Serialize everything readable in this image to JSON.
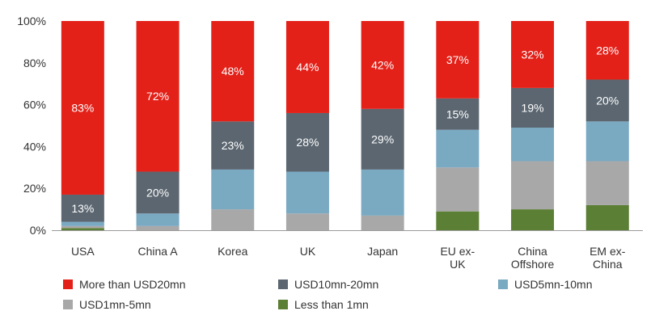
{
  "chart_data": {
    "type": "bar",
    "stacked": true,
    "normalized_percent": true,
    "categories": [
      "USA",
      "China A",
      "Korea",
      "UK",
      "Japan",
      "EU ex-UK",
      "China Offshore",
      "EM ex-China"
    ],
    "category_lines": [
      [
        "USA"
      ],
      [
        "China A"
      ],
      [
        "Korea"
      ],
      [
        "UK"
      ],
      [
        "Japan"
      ],
      [
        "EU ex-",
        "UK"
      ],
      [
        "China",
        "Offshore"
      ],
      [
        "EM ex-",
        "China"
      ]
    ],
    "ylim": [
      0,
      100
    ],
    "yticks": [
      0,
      20,
      40,
      60,
      80,
      100
    ],
    "ytick_labels": [
      "0%",
      "20%",
      "40%",
      "60%",
      "80%",
      "100%"
    ],
    "grid": false,
    "legend_position": "bottom",
    "series": [
      {
        "name": "Less than 1mn",
        "color": "#5b7f34",
        "values": [
          1,
          0,
          0,
          0,
          0,
          9,
          10,
          12
        ]
      },
      {
        "name": "USD1mn-5mn",
        "color": "#a8a8a8",
        "values": [
          1,
          2,
          10,
          8,
          7,
          21,
          23,
          21
        ]
      },
      {
        "name": "USD5mn-10mn",
        "color": "#7aa9c2",
        "values": [
          2,
          6,
          19,
          20,
          22,
          18,
          16,
          19
        ]
      },
      {
        "name": "USD10mn-20mn",
        "color": "#5b6670",
        "values": [
          13,
          20,
          23,
          28,
          29,
          15,
          19,
          20
        ]
      },
      {
        "name": "More than USD20mn",
        "color": "#e32119",
        "values": [
          83,
          72,
          48,
          44,
          42,
          37,
          32,
          28
        ]
      }
    ],
    "data_labels": [
      {
        "category": "USA",
        "series": "More than USD20mn",
        "text": "83%"
      },
      {
        "category": "USA",
        "series": "USD10mn-20mn",
        "text": "13%"
      },
      {
        "category": "China A",
        "series": "More than USD20mn",
        "text": "72%"
      },
      {
        "category": "China A",
        "series": "USD10mn-20mn",
        "text": "20%"
      },
      {
        "category": "Korea",
        "series": "More than USD20mn",
        "text": "48%"
      },
      {
        "category": "Korea",
        "series": "USD10mn-20mn",
        "text": "23%"
      },
      {
        "category": "UK",
        "series": "More than USD20mn",
        "text": "44%"
      },
      {
        "category": "UK",
        "series": "USD10mn-20mn",
        "text": "28%"
      },
      {
        "category": "Japan",
        "series": "More than USD20mn",
        "text": "42%"
      },
      {
        "category": "Japan",
        "series": "USD10mn-20mn",
        "text": "29%"
      },
      {
        "category": "EU ex-UK",
        "series": "More than USD20mn",
        "text": "37%"
      },
      {
        "category": "EU ex-UK",
        "series": "USD10mn-20mn",
        "text": "15%"
      },
      {
        "category": "China Offshore",
        "series": "More than USD20mn",
        "text": "32%"
      },
      {
        "category": "China Offshore",
        "series": "USD10mn-20mn",
        "text": "19%"
      },
      {
        "category": "EM ex-China",
        "series": "More than USD20mn",
        "text": "28%"
      },
      {
        "category": "EM ex-China",
        "series": "USD10mn-20mn",
        "text": "20%"
      }
    ],
    "legend_order": [
      "More than USD20mn",
      "USD10mn-20mn",
      "USD5mn-10mn",
      "USD1mn-5mn",
      "Less than 1mn"
    ],
    "label_color": "#ffffff",
    "axis_color": "#9a9a9a",
    "text_color": "#333333"
  }
}
